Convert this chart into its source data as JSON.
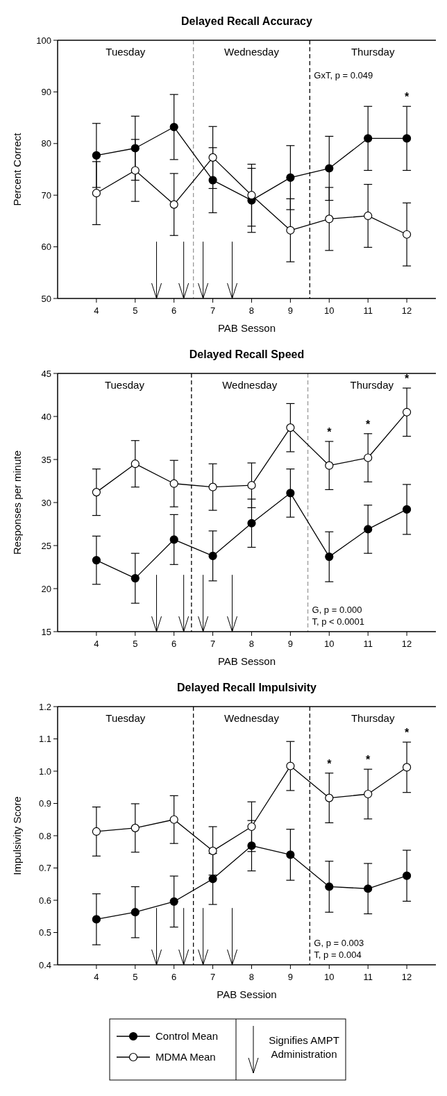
{
  "chart_data": [
    {
      "type": "line",
      "title": "Delayed Recall Accuracy",
      "xlabel": "PAB Sesson",
      "ylabel": "Percent Correct",
      "x": [
        4,
        5,
        6,
        7,
        8,
        9,
        10,
        11,
        12
      ],
      "xlim": [
        3,
        12.75
      ],
      "xticks": [
        4,
        5,
        6,
        7,
        8,
        9,
        10,
        11,
        12
      ],
      "ylim": [
        50,
        100
      ],
      "yticks": [
        50,
        60,
        70,
        80,
        90,
        100
      ],
      "marker": "circle",
      "line_style": "solid",
      "legend": false,
      "grid": false,
      "series": [
        {
          "color": "#000000",
          "values": [
            77.7,
            79.1,
            83.2,
            72.9,
            69.0,
            73.4,
            75.2,
            81.0,
            81.0
          ],
          "errors": [
            6.2,
            6.2,
            6.3,
            6.3,
            6.2,
            6.2,
            6.2,
            6.2,
            6.2
          ]
        },
        {
          "color": "#ffffff",
          "values": [
            70.4,
            74.8,
            68.2,
            77.3,
            70.0,
            63.2,
            65.4,
            66.0,
            62.4
          ],
          "errors": [
            6.1,
            6.0,
            6.0,
            6.0,
            6.0,
            6.1,
            6.1,
            6.1,
            6.1
          ]
        }
      ],
      "ref_lines": [
        {
          "axis": "x",
          "value": 6.5,
          "color": "#999999",
          "line_style": "dashed"
        },
        {
          "axis": "x",
          "value": 9.5,
          "color": "#000000",
          "line_style": "dashed"
        }
      ],
      "annotations": [
        "Tuesday",
        "Wednesday",
        "Thursday",
        "GxT, p = 0.049",
        {
          "text": "*",
          "x": 12,
          "y": 87.2
        }
      ]
    },
    {
      "type": "line",
      "title": "Delayed Recall Speed",
      "xlabel": "PAB Sesson",
      "ylabel": "Responses per minute",
      "x": [
        4,
        5,
        6,
        7,
        8,
        9,
        10,
        11,
        12
      ],
      "xlim": [
        3,
        12.75
      ],
      "xticks": [
        4,
        5,
        6,
        7,
        8,
        9,
        10,
        11,
        12
      ],
      "ylim": [
        15,
        45
      ],
      "yticks": [
        15,
        20,
        25,
        30,
        35,
        40,
        45
      ],
      "marker": "circle",
      "line_style": "solid",
      "legend": false,
      "grid": false,
      "series": [
        {
          "color": "#000000",
          "values": [
            23.3,
            21.2,
            25.7,
            23.8,
            27.6,
            31.1,
            23.7,
            26.9,
            29.2
          ],
          "errors": [
            2.8,
            2.9,
            2.9,
            2.9,
            2.8,
            2.8,
            2.9,
            2.8,
            2.9
          ]
        },
        {
          "color": "#ffffff",
          "values": [
            31.2,
            34.5,
            32.2,
            31.8,
            32.0,
            38.7,
            34.3,
            35.2,
            40.5
          ],
          "errors": [
            2.7,
            2.7,
            2.7,
            2.7,
            2.6,
            2.8,
            2.8,
            2.8,
            2.8
          ]
        }
      ],
      "ref_lines": [
        {
          "axis": "x",
          "value": 6.45,
          "color": "#000000",
          "line_style": "dashed"
        },
        {
          "axis": "x",
          "value": 9.45,
          "color": "#999999",
          "line_style": "dashed"
        }
      ],
      "annotations": [
        "Tuesday",
        "Wednesday",
        "Thursday",
        "G, p = 0.000",
        "T, p <  0.0001",
        {
          "text": "*",
          "x": 10,
          "y": 34.3
        },
        {
          "text": "*",
          "x": 11,
          "y": 35.2
        },
        {
          "text": "*",
          "x": 12,
          "y": 40.5
        }
      ]
    },
    {
      "type": "line",
      "title": "Delayed Recall Impulsivity",
      "xlabel": "PAB Session",
      "ylabel": "Impulsivity Score",
      "x": [
        4,
        5,
        6,
        7,
        8,
        9,
        10,
        11,
        12
      ],
      "xlim": [
        3,
        12.75
      ],
      "xticks": [
        4,
        5,
        6,
        7,
        8,
        9,
        10,
        11,
        12
      ],
      "ylim": [
        0.4,
        1.2
      ],
      "yticks": [
        {
          "value": 0.4,
          "label": "0.4"
        },
        {
          "value": 0.5,
          "label": "0.5"
        },
        {
          "value": 0.6,
          "label": "0.6"
        },
        {
          "value": 0.7,
          "label": "0.7"
        },
        {
          "value": 0.8,
          "label": "0.8"
        },
        {
          "value": 0.9,
          "label": "0.9"
        },
        {
          "value": 1,
          "label": "1.0"
        },
        {
          "value": 1.1,
          "label": "1.1"
        },
        {
          "value": 1.2,
          "label": "1.2"
        }
      ],
      "marker": "circle",
      "line_style": "solid",
      "legend": "bottom",
      "grid": false,
      "series": [
        {
          "name": "Control Mean",
          "color": "#000000",
          "values": [
            0.541,
            0.563,
            0.596,
            0.666,
            0.769,
            0.741,
            0.642,
            0.636,
            0.676
          ],
          "errors": [
            0.079,
            0.079,
            0.079,
            0.079,
            0.078,
            0.079,
            0.079,
            0.078,
            0.079
          ]
        },
        {
          "name": "MDMA Mean",
          "color": "#ffffff",
          "values": [
            0.813,
            0.824,
            0.85,
            0.753,
            0.828,
            1.016,
            0.917,
            0.929,
            1.012
          ],
          "errors": [
            0.076,
            0.075,
            0.074,
            0.075,
            0.077,
            0.076,
            0.077,
            0.077,
            0.078
          ]
        }
      ],
      "ref_lines": [
        {
          "axis": "x",
          "value": 6.5,
          "color": "#000000",
          "line_style": "dashed"
        },
        {
          "axis": "x",
          "value": 9.5,
          "color": "#000000",
          "line_style": "dashed"
        }
      ],
      "annotations": [
        "Tuesday",
        "Wednesday",
        "Thursday",
        "G, p = 0.003",
        "T, p =  0.004",
        {
          "text": "*",
          "x": 10,
          "y": 0.917
        },
        {
          "text": "*",
          "x": 11,
          "y": 0.929
        },
        {
          "text": "*",
          "x": 12,
          "y": 1.012
        },
        "Signifies AMPT Administration"
      ]
    }
  ]
}
